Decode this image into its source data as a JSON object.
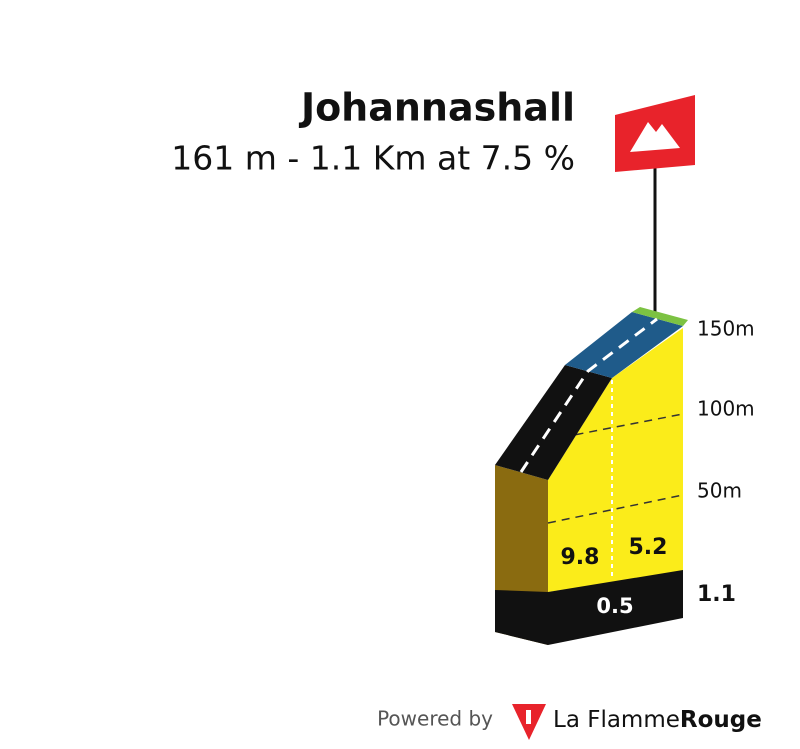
{
  "climb": {
    "name": "Johannashall",
    "summary": "161 m - 1.1 Km at 7.5 %"
  },
  "profile": {
    "altitude_ticks": [
      "150m",
      "100m",
      "50m"
    ],
    "segments": [
      {
        "gradient": "9.8"
      },
      {
        "gradient": "5.2"
      }
    ],
    "start_km": "0.5",
    "end_km": "1.1"
  },
  "footer": {
    "powered_by": "Powered by",
    "brand_light": "La Flamme",
    "brand_bold": "Rouge"
  }
}
